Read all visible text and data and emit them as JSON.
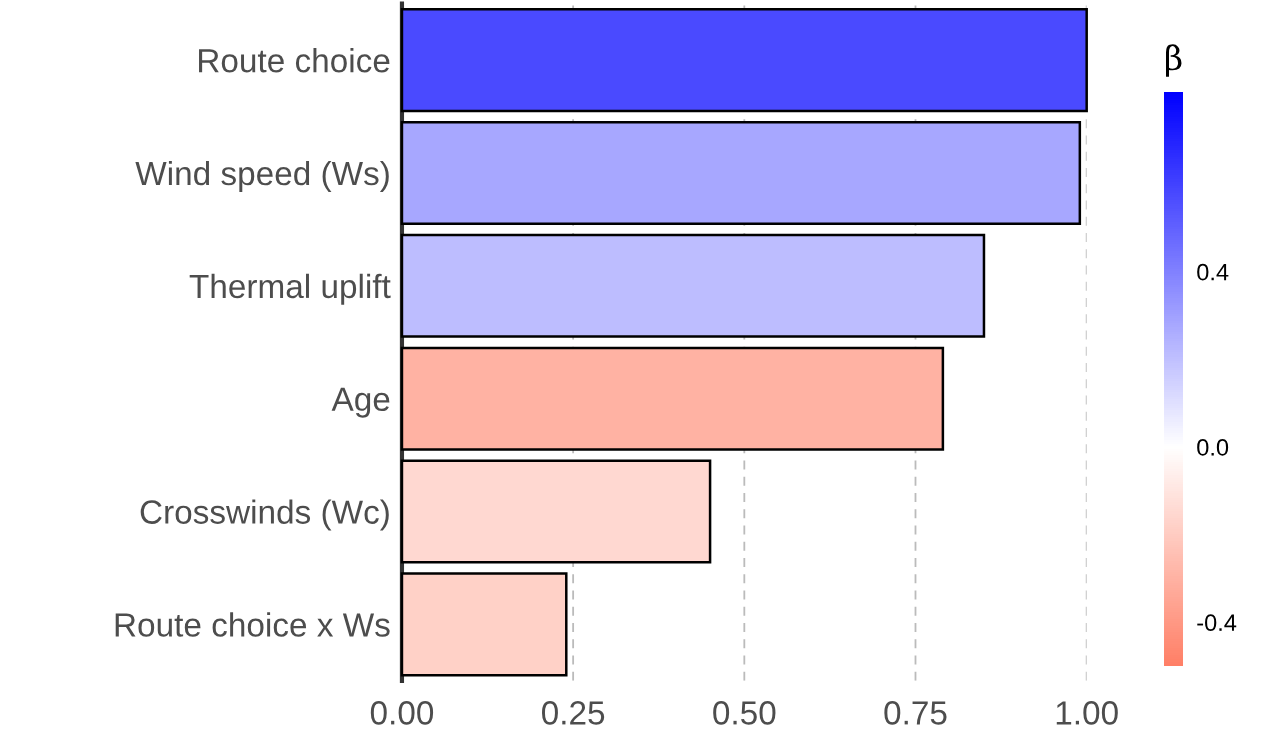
{
  "chart_data": {
    "type": "bar",
    "orientation": "horizontal",
    "categories": [
      "Route choice",
      "Wind speed (Ws)",
      "Thermal uplift",
      "Age",
      "Crosswinds (Wc)",
      "Route choice x Ws"
    ],
    "values": [
      1.0,
      0.99,
      0.85,
      0.79,
      0.45,
      0.24
    ],
    "cvalues": [
      0.57,
      0.28,
      0.21,
      -0.3,
      -0.15,
      -0.18
    ],
    "clabel": "β",
    "clim": [
      -0.5,
      0.81
    ],
    "cticks": [
      -0.4,
      {
        "value": 0,
        "label": "0.0"
      },
      0.4
    ],
    "xlim": [
      0,
      1.0
    ],
    "xticks": [
      {
        "value": 0,
        "label": "0.00"
      },
      {
        "value": 0.25,
        "label": "0.25"
      },
      {
        "value": 0.5,
        "label": "0.50"
      },
      {
        "value": 0.75,
        "label": "0.75"
      },
      {
        "value": 1.0,
        "label": "1.00"
      }
    ],
    "grid": "x"
  }
}
